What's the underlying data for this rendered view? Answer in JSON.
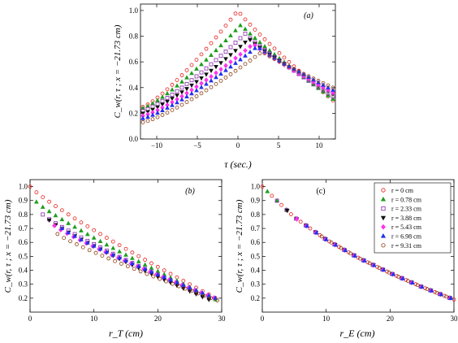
{
  "legend": {
    "entries": [
      {
        "label": "r = 0 cm",
        "color": "#e8201c",
        "marker": "circle",
        "r": 0
      },
      {
        "label": "r = 0.78 cm",
        "color": "#1e9e1e",
        "marker": "triangle-up",
        "r": 0.78
      },
      {
        "label": "r = 2.33 cm",
        "color": "#8a2ab0",
        "marker": "square",
        "r": 2.33
      },
      {
        "label": "r = 3.88 cm",
        "color": "#111111",
        "marker": "triangle-down",
        "r": 3.88
      },
      {
        "label": "r = 5.43 cm",
        "color": "#ff33ee",
        "marker": "diamond",
        "r": 5.43
      },
      {
        "label": "r = 6.98 cm",
        "color": "#2233ee",
        "marker": "triangle-up",
        "r": 6.98
      },
      {
        "label": "r = 9.31 cm",
        "color": "#8b3d10",
        "marker": "circle",
        "r": 9.31
      }
    ]
  },
  "chart_data": [
    {
      "type": "scatter",
      "panel": "(a)",
      "title": "",
      "xlabel": "τ (sec.)",
      "ylabel": "C_w(r, τ ; x = −21.73 cm)",
      "xlim": [
        -12,
        12
      ],
      "ylim": [
        0,
        1.05
      ],
      "xticks": [
        -10,
        -5,
        0,
        5,
        10
      ],
      "yticks": [
        0,
        0.2,
        0.4,
        0.6,
        0.8,
        1.0
      ],
      "xtick_labels": [
        "−10",
        "−5",
        "0",
        "5",
        "10"
      ],
      "ytick_labels": [
        "0.0",
        "0.2",
        "0.4",
        "0.6",
        "0.8",
        "1.0"
      ],
      "x_range": [
        -11.7,
        11.7
      ],
      "x_step": 0.6,
      "series": [
        {
          "name": "r = 0 cm",
          "peak_x": 0.0,
          "peak_y": 1.0,
          "start_y": 0.25,
          "end_y": 0.3
        },
        {
          "name": "r = 0.78 cm",
          "peak_x": 0.4,
          "peak_y": 0.89,
          "start_y": 0.24,
          "end_y": 0.31
        },
        {
          "name": "r = 2.33 cm",
          "peak_x": 0.9,
          "peak_y": 0.82,
          "start_y": 0.22,
          "end_y": 0.33
        },
        {
          "name": "r = 3.88 cm",
          "peak_x": 1.4,
          "peak_y": 0.78,
          "start_y": 0.2,
          "end_y": 0.35
        },
        {
          "name": "r = 5.43 cm",
          "peak_x": 1.9,
          "peak_y": 0.74,
          "start_y": 0.18,
          "end_y": 0.36
        },
        {
          "name": "r = 6.98 cm",
          "peak_x": 2.4,
          "peak_y": 0.72,
          "start_y": 0.16,
          "end_y": 0.38
        },
        {
          "name": "r = 9.31 cm",
          "peak_x": 3.0,
          "peak_y": 0.68,
          "start_y": 0.13,
          "end_y": 0.4
        }
      ]
    },
    {
      "type": "scatter",
      "panel": "(b)",
      "title": "",
      "xlabel": "r_T (cm)",
      "ylabel": "C_w(r, τ ; x = −21.73 cm)",
      "xlim": [
        0,
        30
      ],
      "ylim": [
        0.1,
        1.05
      ],
      "xticks": [
        0,
        10,
        20,
        30
      ],
      "yticks": [
        0.2,
        0.3,
        0.4,
        0.5,
        0.6,
        0.7,
        0.8,
        0.9,
        1.0
      ],
      "xtick_labels": [
        "0",
        "10",
        "20",
        "30"
      ],
      "ytick_labels": [
        "0.2",
        "0.3",
        "0.4",
        "0.5",
        "0.6",
        "0.7",
        "0.8",
        "0.9",
        "1.0"
      ],
      "series": [
        {
          "name": "r = 0 cm",
          "start_x": 0.0,
          "start_y": 1.0,
          "end_x": 29.5,
          "end_y": 0.19,
          "spacing": 1.0
        },
        {
          "name": "r = 0.78 cm",
          "start_x": 1.0,
          "start_y": 0.89,
          "end_x": 29.0,
          "end_y": 0.19,
          "spacing": 1.0
        },
        {
          "name": "r = 2.33 cm",
          "start_x": 2.0,
          "start_y": 0.8,
          "end_x": 28.5,
          "end_y": 0.19,
          "spacing": 1.0
        },
        {
          "name": "r = 3.88 cm",
          "start_x": 3.0,
          "start_y": 0.76,
          "end_x": 28.0,
          "end_y": 0.19,
          "spacing": 1.0
        },
        {
          "name": "r = 5.43 cm",
          "start_x": 3.8,
          "start_y": 0.72,
          "end_x": 29.5,
          "end_y": 0.19,
          "spacing": 1.0
        },
        {
          "name": "r = 6.98 cm",
          "start_x": 5.0,
          "start_y": 0.7,
          "end_x": 29.0,
          "end_y": 0.2,
          "spacing": 1.0
        },
        {
          "name": "r = 9.31 cm",
          "start_x": 4.3,
          "start_y": 0.66,
          "end_x": 29.5,
          "end_y": 0.18,
          "spacing": 1.0
        }
      ]
    },
    {
      "type": "scatter",
      "panel": "(c)",
      "title": "",
      "xlabel": "r_E (cm)",
      "ylabel": "C_w(r, τ ; x = −21.73 cm)",
      "xlim": [
        0,
        30
      ],
      "ylim": [
        0.1,
        1.05
      ],
      "xticks": [
        0,
        10,
        20,
        30
      ],
      "yticks": [
        0.2,
        0.3,
        0.4,
        0.5,
        0.6,
        0.7,
        0.8,
        0.9,
        1.0
      ],
      "xtick_labels": [
        "0",
        "10",
        "20",
        "30"
      ],
      "ytick_labels": [
        "0.2",
        "0.3",
        "0.4",
        "0.5",
        "0.6",
        "0.7",
        "0.8",
        "0.9",
        "1.0"
      ],
      "legend_position": "top-right",
      "series": [
        {
          "name": "r = 0 cm",
          "start_x": 0.0,
          "end_x": 30.0,
          "spacing": 1.5
        },
        {
          "name": "r = 0.78 cm",
          "start_x": 0.8,
          "end_x": 30.0,
          "spacing": 1.5
        },
        {
          "name": "r = 2.33 cm",
          "start_x": 2.3,
          "end_x": 30.0,
          "spacing": 1.5
        },
        {
          "name": "r = 3.88 cm",
          "start_x": 3.9,
          "end_x": 30.0,
          "spacing": 1.5
        },
        {
          "name": "r = 5.43 cm",
          "start_x": 5.4,
          "end_x": 30.0,
          "spacing": 1.5
        },
        {
          "name": "r = 6.98 cm",
          "start_x": 7.0,
          "end_x": 30.0,
          "spacing": 1.5
        },
        {
          "name": "r = 9.31 cm",
          "start_x": 9.3,
          "end_x": 30.0,
          "spacing": 1.5
        }
      ],
      "collapse_curve": {
        "x": [
          0,
          5,
          10,
          15,
          20,
          25,
          30
        ],
        "y": [
          1.0,
          0.78,
          0.62,
          0.49,
          0.38,
          0.28,
          0.19
        ]
      }
    }
  ]
}
